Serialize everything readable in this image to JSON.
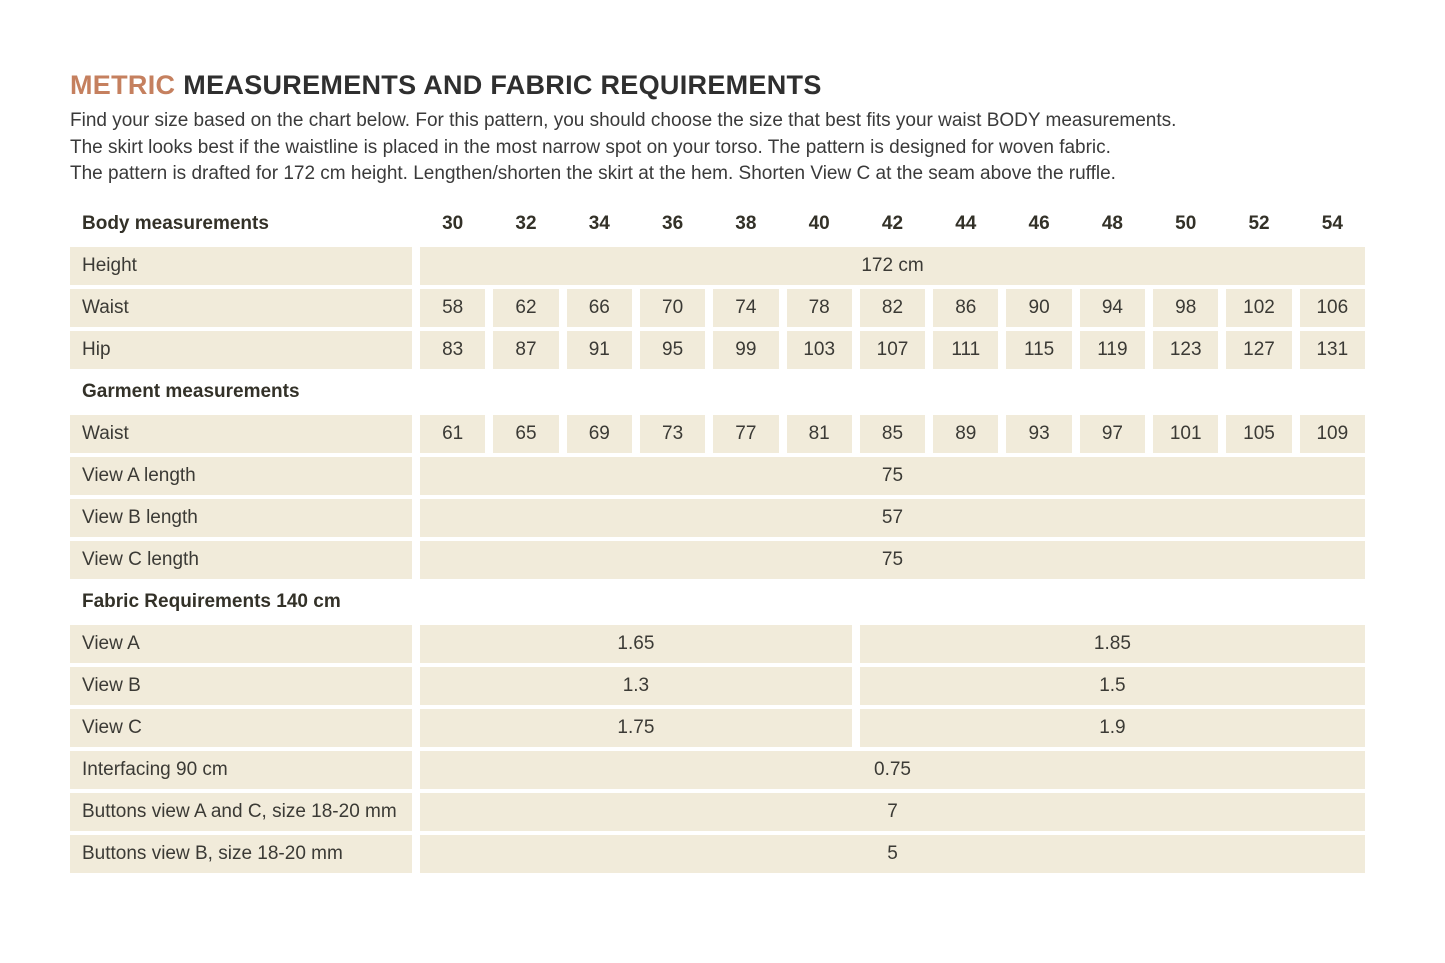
{
  "title": {
    "highlight": "METRIC",
    "rest": "MEASUREMENTS AND FABRIC REQUIREMENTS"
  },
  "intro_lines": [
    "Find your size based on the chart below. For this pattern, you should choose the size that best fits your waist BODY measurements.",
    "The skirt looks best if the waistline is placed in the most narrow spot on your torso. The pattern is designed for woven fabric.",
    "The pattern is drafted for 172 cm height. Lengthen/shorten the skirt at the hem. Shorten View C at the seam above the ruffle."
  ],
  "colors": {
    "accent": "#c5805f",
    "cell_bg": "#f1ebda",
    "text": "#3b3a35",
    "title_text": "#2f2f2f"
  },
  "table": {
    "sizes": [
      "30",
      "32",
      "34",
      "36",
      "38",
      "40",
      "42",
      "44",
      "46",
      "48",
      "50",
      "52",
      "54"
    ],
    "rows": [
      {
        "type": "size-header",
        "label": "Body measurements"
      },
      {
        "type": "span",
        "label": "Height",
        "value": "172 cm"
      },
      {
        "type": "cells",
        "label": "Waist",
        "values": [
          "58",
          "62",
          "66",
          "70",
          "74",
          "78",
          "82",
          "86",
          "90",
          "94",
          "98",
          "102",
          "106"
        ]
      },
      {
        "type": "cells",
        "label": "Hip",
        "values": [
          "83",
          "87",
          "91",
          "95",
          "99",
          "103",
          "107",
          "111",
          "115",
          "119",
          "123",
          "127",
          "131"
        ]
      },
      {
        "type": "section",
        "label": "Garment measurements"
      },
      {
        "type": "cells",
        "label": "Waist",
        "values": [
          "61",
          "65",
          "69",
          "73",
          "77",
          "81",
          "85",
          "89",
          "93",
          "97",
          "101",
          "105",
          "109"
        ]
      },
      {
        "type": "span",
        "label": "View A length",
        "value": "75"
      },
      {
        "type": "span",
        "label": "View B length",
        "value": "57"
      },
      {
        "type": "span",
        "label": "View C length",
        "value": "75"
      },
      {
        "type": "section",
        "label": "Fabric Requirements 140 cm"
      },
      {
        "type": "split",
        "label": "View A",
        "left": "1.65",
        "right": "1.85"
      },
      {
        "type": "split",
        "label": "View B",
        "left": "1.3",
        "right": "1.5"
      },
      {
        "type": "split",
        "label": "View C",
        "left": "1.75",
        "right": "1.9"
      },
      {
        "type": "span",
        "label": "Interfacing 90 cm",
        "value": "0.75"
      },
      {
        "type": "span",
        "label": "Buttons view A and C, size 18-20 mm",
        "value": "7"
      },
      {
        "type": "span",
        "label": "Buttons view B, size 18-20 mm",
        "value": "5"
      }
    ]
  }
}
